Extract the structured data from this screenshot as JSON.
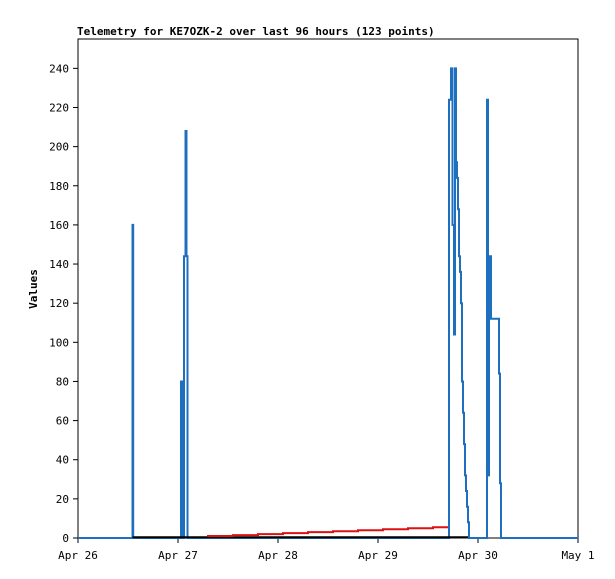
{
  "chart_data": {
    "type": "line",
    "title": "Telemetry for KE7OZK-2 over last 96 hours (123 points)",
    "xlabel": "",
    "ylabel": "Values",
    "x_ticks": [
      {
        "value": 0,
        "label": "Apr 26"
      },
      {
        "value": 1,
        "label": "Apr 27"
      },
      {
        "value": 2,
        "label": "Apr 28"
      },
      {
        "value": 3,
        "label": "Apr 29"
      },
      {
        "value": 4,
        "label": "Apr 30"
      },
      {
        "value": 5,
        "label": "May 1"
      }
    ],
    "xlim": [
      0,
      5
    ],
    "ylim": [
      0,
      255
    ],
    "y_ticks": [
      0,
      20,
      40,
      60,
      80,
      100,
      120,
      140,
      160,
      180,
      200,
      220,
      240
    ],
    "grid": false,
    "legend": "none",
    "colors": {
      "blue_series": "#1f6fbf",
      "red_series": "#dd1111",
      "black_series": "#000000",
      "axis": "#000000"
    },
    "series": [
      {
        "color": "#1f6fbf",
        "x": [
          0,
          0.545,
          0.545,
          0.552,
          0.552,
          1.03,
          1.03,
          1.04,
          1.04,
          1.045,
          1.045,
          1.06,
          1.06,
          1.075,
          1.075,
          1.085,
          1.085,
          1.095,
          1.095,
          1.11,
          1.11,
          3.71,
          3.71,
          3.73,
          3.73,
          3.745,
          3.745,
          3.76,
          3.76,
          3.77,
          3.77,
          3.78,
          3.78,
          3.79,
          3.79,
          3.8,
          3.8,
          3.81,
          3.81,
          3.82,
          3.82,
          3.83,
          3.83,
          3.84,
          3.84,
          3.85,
          3.85,
          3.86,
          3.86,
          3.87,
          3.87,
          3.88,
          3.88,
          3.89,
          3.89,
          3.9,
          3.9,
          3.91,
          3.91,
          3.92,
          3.92,
          4.09,
          4.09,
          4.1,
          4.1,
          4.11,
          4.11,
          4.13,
          4.13,
          4.14,
          4.14,
          4.21,
          4.21,
          4.22,
          4.22,
          4.23,
          4.23,
          4.24,
          4.24,
          5.0
        ],
        "y": [
          0,
          0,
          160,
          160,
          0,
          0,
          80,
          80,
          40,
          40,
          0,
          0,
          144,
          144,
          208,
          208,
          144,
          144,
          0,
          0,
          0,
          0,
          224,
          224,
          240,
          240,
          160,
          160,
          104,
          104,
          240,
          240,
          192,
          192,
          184,
          184,
          168,
          168,
          144,
          144,
          136,
          136,
          120,
          120,
          80,
          80,
          64,
          64,
          48,
          48,
          32,
          32,
          24,
          24,
          16,
          16,
          8,
          8,
          0,
          0,
          0,
          0,
          224,
          224,
          32,
          32,
          144,
          144,
          112,
          112,
          112,
          112,
          84,
          84,
          28,
          28,
          0,
          0,
          0,
          0
        ]
      },
      {
        "color": "#000000",
        "x": [
          0.545,
          3.9
        ],
        "y": [
          0.4,
          0.4
        ]
      },
      {
        "color": "#dd1111",
        "x": [
          1.3,
          1.3,
          1.55,
          1.55,
          1.8,
          1.8,
          2.05,
          2.05,
          2.3,
          2.3,
          2.55,
          2.55,
          2.8,
          2.8,
          3.05,
          3.05,
          3.3,
          3.3,
          3.55,
          3.55,
          3.7
        ],
        "y": [
          0.6,
          1,
          1,
          1.5,
          1.5,
          2,
          2,
          2.5,
          2.5,
          3,
          3,
          3.5,
          3.5,
          4,
          4,
          4.5,
          4.5,
          5,
          5,
          5.5,
          5.5
        ]
      }
    ]
  }
}
